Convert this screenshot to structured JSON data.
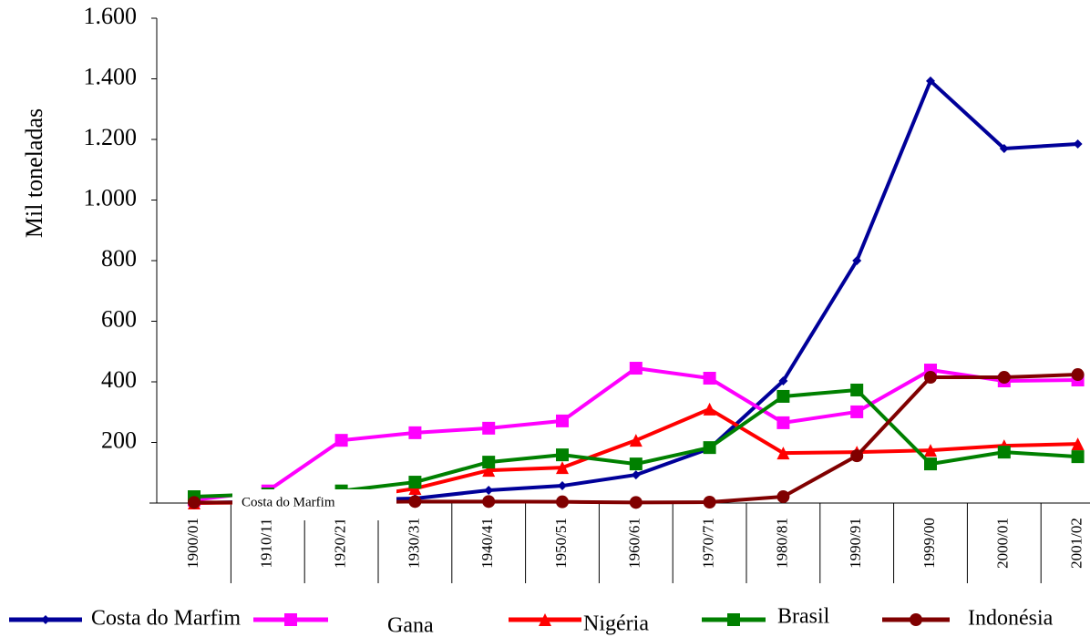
{
  "chart_data": {
    "type": "line",
    "y_label": "Mil toneladas",
    "categories": [
      "1900/01",
      "1910/11",
      "1920/21",
      "1930/31",
      "1940/41",
      "1950/51",
      "1960/61",
      "1970/71",
      "1980/81",
      "1990/91",
      "1999/00",
      "2000/01",
      "2001/02"
    ],
    "series": [
      {
        "name": "Costa do Marfim",
        "color": "#000099",
        "marker": "diamond",
        "values": [
          0,
          5,
          10,
          15,
          42,
          57,
          93,
          180,
          403,
          800,
          1393,
          1170,
          1185
        ]
      },
      {
        "name": "Gana",
        "color": "#ff00ff",
        "marker": "square",
        "values": [
          10,
          40,
          207,
          232,
          247,
          271,
          445,
          412,
          265,
          301,
          439,
          403,
          406
        ]
      },
      {
        "name": "Nigéria",
        "color": "#ff0000",
        "marker": "triangle",
        "values": [
          0,
          2,
          10,
          48,
          108,
          117,
          207,
          310,
          165,
          168,
          174,
          189,
          195
        ]
      },
      {
        "name": "Brasil",
        "color": "#008000",
        "marker": "square",
        "values": [
          21,
          30,
          40,
          69,
          135,
          159,
          129,
          183,
          352,
          373,
          129,
          168,
          153
        ]
      },
      {
        "name": "Indonésia",
        "color": "#800000",
        "marker": "circle",
        "values": [
          2,
          2,
          2,
          5,
          5,
          4,
          2,
          3,
          21,
          156,
          415,
          415,
          424
        ]
      }
    ],
    "annotation": "Costa do Marfim",
    "ylim": [
      0,
      1600
    ],
    "yticks": [
      200,
      400,
      600,
      800,
      {
        "value": 1000,
        "label": "1.000"
      },
      {
        "value": 1200,
        "label": "1.200"
      },
      {
        "value": 1400,
        "label": "1.400"
      },
      {
        "value": 1600,
        "label": "1.600"
      }
    ],
    "grid": false,
    "legend": "bottom"
  }
}
